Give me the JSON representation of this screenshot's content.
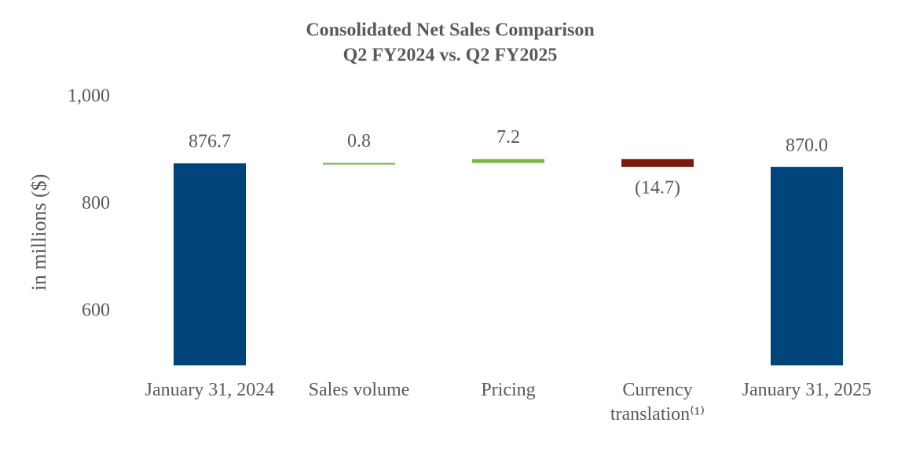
{
  "chart_data": {
    "type": "waterfall",
    "title": "Consolidated Net Sales Comparison",
    "subtitle": "Q2 FY2024 vs. Q2 FY2025",
    "y_label": "in millions ($)",
    "categories": [
      "January 31, 2024",
      "Sales volume",
      "Pricing",
      "Currency translation⁽¹⁾",
      "January 31, 2025"
    ],
    "values": [
      876.7,
      0.8,
      7.2,
      -14.7,
      870.0
    ],
    "value_labels": [
      "876.7",
      "0.8",
      "7.2",
      "(14.7)",
      "870.0"
    ],
    "measure": [
      "total",
      "relative",
      "relative",
      "relative",
      "total"
    ],
    "colors": {
      "total": "#00447c",
      "increase": "#7ab648",
      "decrease": "#7b1a0e"
    },
    "ylim": [
      500,
      1000
    ],
    "yticks": [
      {
        "value": 1000,
        "label": "1,000"
      },
      800,
      600
    ],
    "grid": false
  }
}
